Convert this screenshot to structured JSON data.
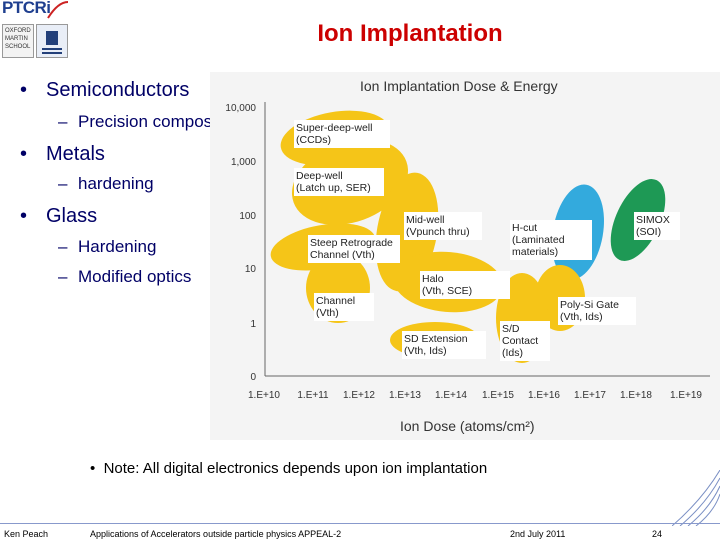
{
  "slide": {
    "title": "Ion Implantation",
    "logo_text": "PTCRi",
    "crest_lines": [
      "OXFORD",
      "MARTIN",
      "SCHOOL"
    ],
    "bullets": [
      {
        "text": "Semiconductors",
        "subs": [
          "Precision composition"
        ]
      },
      {
        "text": "Metals",
        "subs": [
          "hardening"
        ]
      },
      {
        "text": "Glass",
        "subs": [
          "Hardening",
          "Modified optics"
        ]
      }
    ],
    "note": "Note: All digital electronics depends upon ion implantation"
  },
  "diagram": {
    "title": "Ion Implantation Dose & Energy",
    "y_ticks": [
      "10,000",
      "1,000",
      "100",
      "10",
      "1",
      "0"
    ],
    "x_ticks": [
      "1.E+10",
      "1.E+11",
      "1.E+12",
      "1.E+13",
      "1.E+14",
      "1.E+15",
      "1.E+16",
      "1.E+17",
      "1.E+18",
      "1.E+19"
    ],
    "x_label": "Ion Dose (atoms/cm²)",
    "colors": {
      "yellow": "#f5c518",
      "blue": "#33aadd",
      "green": "#1e9955"
    },
    "regions": [
      {
        "name": "super-deep-well",
        "lines": [
          "Super-deep-well",
          "(CCDs)"
        ],
        "color": "yellow"
      },
      {
        "name": "deep-well",
        "lines": [
          "Deep-well",
          "(Latch up, SER)"
        ],
        "color": "yellow"
      },
      {
        "name": "mid-well",
        "lines": [
          "Mid-well",
          "(Vpunch thru)"
        ],
        "color": "yellow"
      },
      {
        "name": "steep-retrograde",
        "lines": [
          "Steep Retrograde",
          "Channel (Vth)"
        ],
        "color": "yellow"
      },
      {
        "name": "h-cut",
        "lines": [
          "H-cut",
          "(Laminated",
          "materials)"
        ],
        "color": "blue"
      },
      {
        "name": "simox",
        "lines": [
          "SIMOX",
          "(SOI)"
        ],
        "color": "green"
      },
      {
        "name": "halo",
        "lines": [
          "Halo",
          "(Vth, SCE)"
        ],
        "color": "yellow"
      },
      {
        "name": "channel",
        "lines": [
          "Channel",
          "(Vth)"
        ],
        "color": "yellow"
      },
      {
        "name": "poly-si-gate",
        "lines": [
          "Poly-Si Gate",
          "(Vth, Ids)"
        ],
        "color": "yellow"
      },
      {
        "name": "sd-extension",
        "lines": [
          "SD Extension",
          "(Vth, Ids)"
        ],
        "color": "yellow"
      },
      {
        "name": "sd-contact",
        "lines": [
          "S/D",
          "Contact",
          "(Ids)"
        ],
        "color": "yellow"
      }
    ]
  },
  "footer": {
    "author": "Ken Peach",
    "course": "Applications of Accelerators outside particle physics  APPEAL-2",
    "date": "2nd July 2011",
    "page": "24"
  }
}
